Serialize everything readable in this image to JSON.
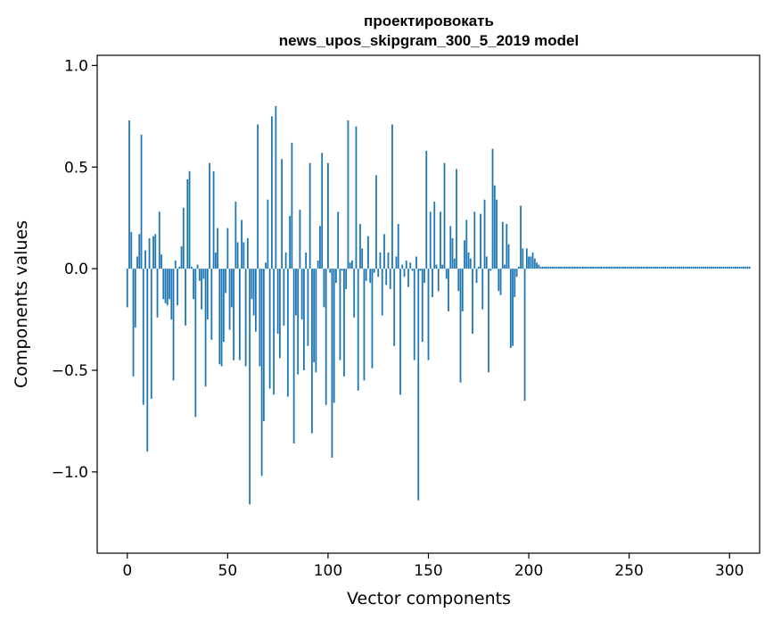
{
  "chart_data": {
    "type": "bar",
    "title_line1": "проектировокать",
    "title_line2": "news_upos_skipgram_300_5_2019 model",
    "xlabel": "Vector components",
    "ylabel": "Components values",
    "xlim": [
      -15,
      315
    ],
    "ylim": [
      -1.4,
      1.05
    ],
    "xticks": [
      0,
      50,
      100,
      150,
      200,
      250,
      300
    ],
    "xtick_labels": [
      "0",
      "50",
      "100",
      "150",
      "200",
      "250",
      "300"
    ],
    "yticks": [
      -1.0,
      -0.5,
      0.0,
      0.5,
      1.0
    ],
    "ytick_labels": [
      "−1.0",
      "−0.5",
      "0.0",
      "0.5",
      "1.0"
    ],
    "bar_color": "#1f77b4",
    "values": [
      -0.19,
      0.73,
      0.18,
      -0.53,
      -0.29,
      0.06,
      0.17,
      0.66,
      -0.67,
      0.09,
      -0.9,
      0.15,
      -0.64,
      0.16,
      0.17,
      -0.24,
      0.28,
      0.07,
      -0.15,
      -0.17,
      -0.18,
      -0.15,
      -0.25,
      -0.55,
      0.04,
      -0.18,
      0.01,
      0.11,
      0.3,
      -0.28,
      0.44,
      0.48,
      0.01,
      -0.15,
      -0.73,
      0.02,
      -0.06,
      -0.2,
      -0.05,
      -0.58,
      -0.25,
      0.52,
      -0.35,
      0.48,
      0.08,
      0.2,
      -0.47,
      -0.48,
      -0.36,
      -0.12,
      0.2,
      -0.3,
      -0.19,
      -0.45,
      0.33,
      0.13,
      -0.45,
      0.24,
      0.13,
      -0.48,
      0.15,
      -1.16,
      -0.15,
      -0.23,
      -0.31,
      0.71,
      -0.48,
      -1.02,
      -0.75,
      0.03,
      0.34,
      -0.59,
      0.75,
      -0.62,
      0.8,
      -0.32,
      -0.44,
      0.54,
      -0.28,
      0.08,
      -0.63,
      0.26,
      0.62,
      -0.86,
      -0.23,
      -0.52,
      0.29,
      -0.25,
      -0.5,
      0.08,
      -0.38,
      0.52,
      -0.81,
      -0.46,
      -0.51,
      0.04,
      0.21,
      0.57,
      -0.19,
      -0.67,
      0.52,
      -0.02,
      -0.93,
      -0.66,
      -0.07,
      0.28,
      -0.45,
      -0.01,
      -0.53,
      -0.1,
      0.73,
      0.03,
      0.04,
      -0.24,
      0.7,
      -0.6,
      0.22,
      0.1,
      -0.55,
      -0.06,
      0.16,
      -0.07,
      -0.49,
      -0.02,
      0.46,
      -0.04,
      0.08,
      -0.23,
      0.17,
      -0.08,
      0.08,
      -0.1,
      0.71,
      -0.38,
      0.06,
      0.22,
      -0.62,
      0.02,
      -0.04,
      0.04,
      -0.09,
      0.03,
      -0.01,
      -0.45,
      0.06,
      -1.14,
      -0.01,
      -0.36,
      -0.07,
      0.58,
      -0.45,
      0.28,
      -0.14,
      0.33,
      0.02,
      -0.11,
      0.28,
      0.02,
      0.52,
      -0.05,
      -0.21,
      0.21,
      0.15,
      0.05,
      0.49,
      -0.11,
      -0.56,
      -0.21,
      0.14,
      0.24,
      0.08,
      0.05,
      -0.32,
      0.28,
      -0.07,
      0.01,
      0.27,
      -0.2,
      0.34,
      0.06,
      -0.51,
      -0.01,
      0.59,
      0.41,
      0.34,
      -0.11,
      -0.13,
      0.23,
      0.02,
      0.22,
      0.12,
      -0.39,
      -0.38,
      -0.14,
      -0.04,
      0.01,
      0.31,
      0.1,
      -0.65,
      0.1,
      0.06,
      0.06,
      0.08,
      0.05,
      0.03,
      0.02,
      0.01,
      0.01,
      0.01,
      0.01,
      0.01,
      0.01,
      0.01,
      0.01,
      0.01,
      0.01,
      0.01,
      0.01,
      0.01,
      0.01,
      0.01,
      0.01,
      0.01,
      0.01,
      0.01,
      0.01,
      0.01,
      0.01,
      0.01,
      0.01,
      0.01,
      0.01,
      0.01,
      0.01,
      0.01,
      0.01,
      0.01,
      0.01,
      0.01,
      0.01,
      0.01,
      0.01,
      0.01,
      0.01,
      0.01,
      0.01,
      0.01,
      0.01,
      0.01,
      0.01,
      0.01,
      0.01,
      0.01,
      0.01,
      0.01,
      0.01,
      0.01,
      0.01,
      0.01,
      0.01,
      0.01,
      0.01,
      0.01,
      0.01,
      0.01,
      0.01,
      0.01,
      0.01,
      0.01,
      0.01,
      0.01,
      0.01,
      0.01,
      0.01,
      0.01,
      0.01,
      0.01,
      0.01,
      0.01,
      0.01,
      0.01,
      0.01,
      0.01,
      0.01,
      0.01,
      0.01,
      0.01,
      0.01,
      0.01,
      0.01,
      0.01,
      0.01,
      0.01,
      0.01,
      0.01,
      0.01,
      0.01,
      0.01,
      0.01,
      0.01,
      0.01,
      0.01,
      0.01,
      0.01,
      0.01,
      0.01,
      0.01,
      0.01,
      0.01,
      0.01,
      0.01
    ]
  }
}
